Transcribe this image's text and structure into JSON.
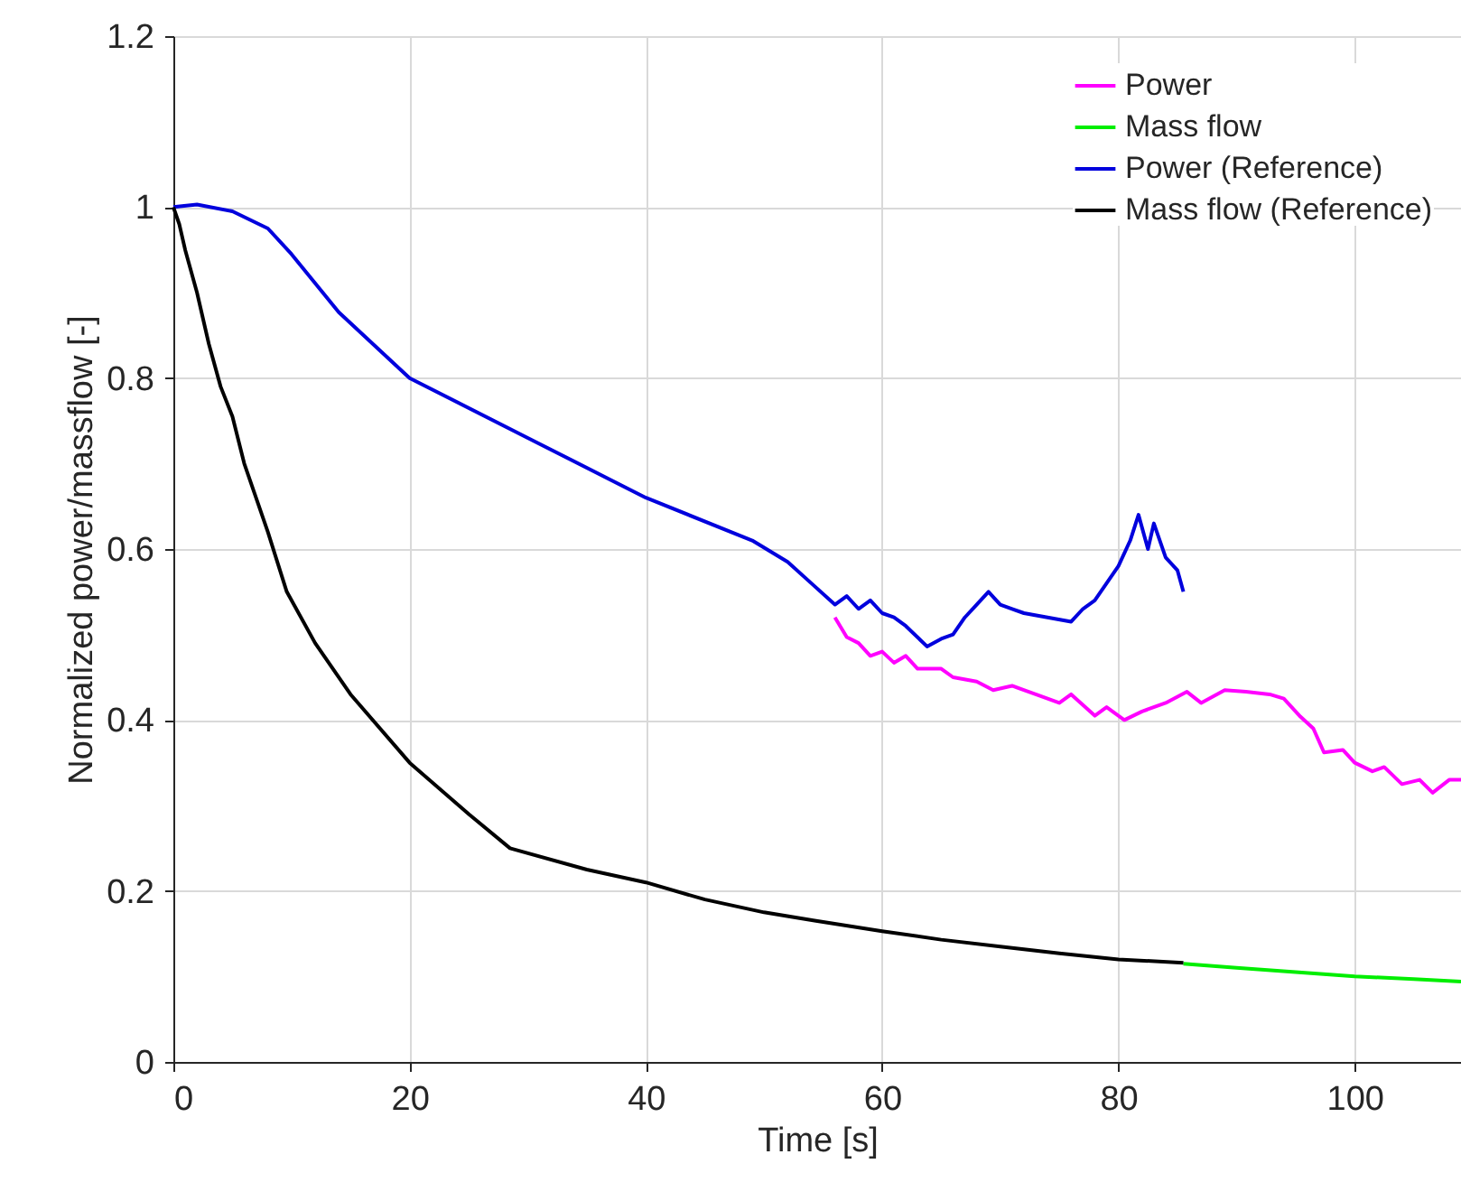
{
  "chart_data": {
    "type": "line",
    "xlabel": "Time [s]",
    "ylabel": "Normalized power/massflow [-]",
    "xlim": [
      0,
      109
    ],
    "xticks": [
      0,
      20,
      40,
      60,
      80,
      100
    ],
    "ylim": [
      0,
      1.2
    ],
    "yticks": [
      0,
      0.2,
      0.4,
      0.6,
      0.8,
      1,
      1.2
    ],
    "grid": true,
    "legend": "top right",
    "line_style": "solid",
    "marker": "none",
    "series": [
      {
        "name": "Power",
        "color": "#ff00ff",
        "x": [
          56,
          57,
          58,
          59,
          60,
          61,
          62,
          63,
          65,
          66,
          68,
          69.4,
          71,
          73,
          75,
          76,
          78,
          79,
          80.5,
          82,
          84,
          85.8,
          87,
          89,
          90.8,
          92.8,
          94,
          95.4,
          96.5,
          97.4,
          99,
          100,
          101.5,
          102.5,
          104,
          105.5,
          106.6,
          108,
          109
        ],
        "values": [
          0.52,
          0.497,
          0.49,
          0.475,
          0.48,
          0.467,
          0.475,
          0.46,
          0.46,
          0.45,
          0.445,
          0.435,
          0.44,
          0.43,
          0.42,
          0.43,
          0.405,
          0.415,
          0.4,
          0.41,
          0.42,
          0.433,
          0.42,
          0.435,
          0.433,
          0.43,
          0.425,
          0.404,
          0.39,
          0.362,
          0.365,
          0.35,
          0.34,
          0.345,
          0.325,
          0.33,
          0.315,
          0.33,
          0.33
        ]
      },
      {
        "name": "Mass flow",
        "color": "#00ee00",
        "x": [
          85.5,
          90,
          95,
          100,
          105,
          109
        ],
        "values": [
          0.115,
          0.11,
          0.105,
          0.1,
          0.097,
          0.094
        ]
      },
      {
        "name": "Power (Reference)",
        "color": "#0000dd",
        "x": [
          0,
          2,
          5,
          8,
          10,
          14,
          20,
          30,
          40,
          49,
          52,
          54,
          56,
          57,
          58,
          59,
          60,
          61,
          62,
          63.8,
          65,
          66,
          67,
          68,
          69,
          70,
          71,
          72,
          74,
          76,
          77,
          78,
          79,
          80,
          81,
          81.7,
          82.5,
          83,
          84,
          85,
          85.5
        ],
        "values": [
          1.0,
          1.003,
          0.995,
          0.975,
          0.945,
          0.877,
          0.8,
          0.73,
          0.66,
          0.61,
          0.585,
          0.56,
          0.535,
          0.545,
          0.53,
          0.54,
          0.525,
          0.52,
          0.51,
          0.486,
          0.495,
          0.5,
          0.52,
          0.535,
          0.55,
          0.535,
          0.53,
          0.525,
          0.52,
          0.515,
          0.53,
          0.54,
          0.56,
          0.58,
          0.61,
          0.64,
          0.6,
          0.63,
          0.59,
          0.575,
          0.55
        ]
      },
      {
        "name": "Mass flow (Reference)",
        "color": "#000000",
        "x": [
          0,
          0.5,
          1,
          2,
          3,
          4,
          5,
          6,
          8,
          9.6,
          12,
          15,
          20,
          25,
          28.5,
          35,
          40,
          45,
          50,
          54.4,
          60,
          65,
          70,
          75,
          80,
          85.5
        ],
        "values": [
          1.0,
          0.98,
          0.95,
          0.9,
          0.84,
          0.79,
          0.755,
          0.7,
          0.62,
          0.55,
          0.49,
          0.43,
          0.35,
          0.29,
          0.25,
          0.225,
          0.21,
          0.19,
          0.175,
          0.165,
          0.153,
          0.143,
          0.135,
          0.127,
          0.12,
          0.116
        ]
      }
    ]
  }
}
